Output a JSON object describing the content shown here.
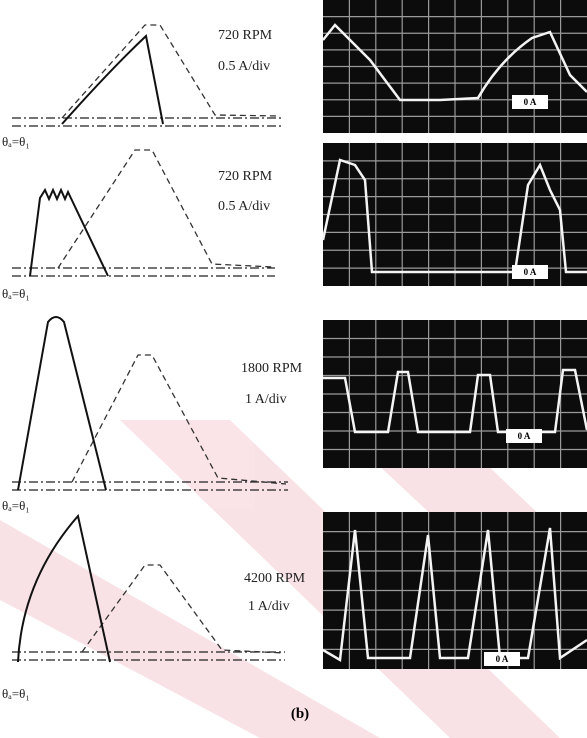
{
  "rows": [
    {
      "speed": "720 RPM",
      "scale": "0.5 A/div",
      "angle_label": "θₐ=θ₁",
      "zero_label": "0 A"
    },
    {
      "speed": "720 RPM",
      "scale": "0.5 A/div",
      "angle_label": "θₐ=θ₁",
      "zero_label": "0 A"
    },
    {
      "speed": "1800 RPM",
      "scale": "1 A/div",
      "angle_label": "θₐ=θ₁",
      "zero_label": "0 A"
    },
    {
      "speed": "4200 RPM",
      "scale": "1 A/div",
      "angle_label": "θₐ=θ₁",
      "zero_label": "0 A"
    }
  ],
  "caption": "(b)"
}
